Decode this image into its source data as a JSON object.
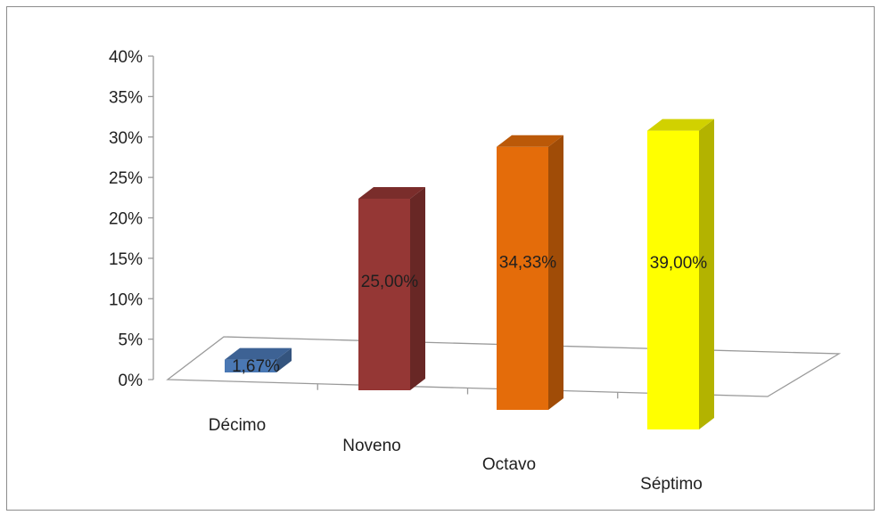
{
  "chart_data": {
    "type": "bar",
    "title": "",
    "xlabel": "",
    "ylabel": "",
    "categories": [
      "Décimo",
      "Noveno",
      "Octavo",
      "Séptimo"
    ],
    "values": [
      1.67,
      25.0,
      34.33,
      39.0
    ],
    "data_labels": [
      "1,67%",
      "25,00%",
      "34,33%",
      "39,00%"
    ],
    "ylim": [
      0,
      40
    ],
    "yticks": [
      0,
      5,
      10,
      15,
      20,
      25,
      30,
      35,
      40
    ],
    "ytick_labels": [
      "0%",
      "5%",
      "10%",
      "15%",
      "20%",
      "25%",
      "30%",
      "35%",
      "40%"
    ],
    "bar_colors": [
      "#4a78b4",
      "#953735",
      "#e46c0a",
      "#ffff00"
    ],
    "grid": false,
    "legend": "none",
    "style": "3d-column"
  }
}
